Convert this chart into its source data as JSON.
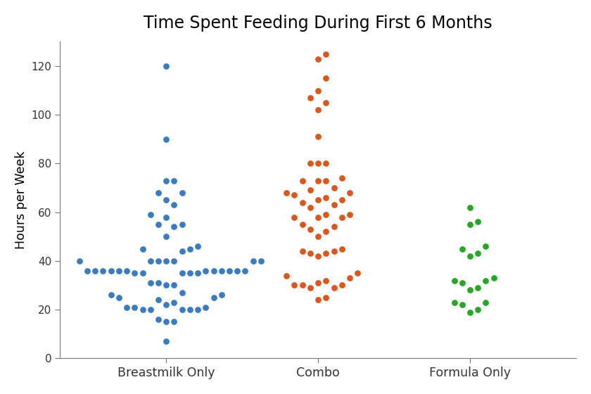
{
  "title": "Time Spent Feeding During First 6 Months",
  "ylabel": "Hours per Week",
  "categories": [
    "Breastmilk Only",
    "Combo",
    "Formula Only"
  ],
  "colors": [
    "#3a7cbf",
    "#d95820",
    "#27a627"
  ],
  "ylim": [
    0,
    130
  ],
  "yticks": [
    0,
    20,
    40,
    60,
    80,
    100,
    120
  ],
  "breastmilk": [
    120,
    90,
    73,
    73,
    68,
    68,
    65,
    63,
    59,
    58,
    55,
    55,
    54,
    50,
    46,
    45,
    45,
    44,
    40,
    40,
    40,
    40,
    40,
    40,
    40,
    36,
    36,
    36,
    36,
    36,
    36,
    36,
    36,
    36,
    36,
    36,
    36,
    35,
    35,
    35,
    35,
    35,
    31,
    31,
    30,
    30,
    27,
    26,
    26,
    25,
    25,
    24,
    23,
    22,
    21,
    21,
    21,
    20,
    20,
    20,
    20,
    20,
    16,
    15,
    15,
    7
  ],
  "combo": [
    125,
    123,
    115,
    110,
    107,
    105,
    102,
    91,
    80,
    80,
    80,
    74,
    73,
    73,
    73,
    70,
    69,
    68,
    68,
    67,
    66,
    65,
    65,
    64,
    63,
    62,
    59,
    59,
    58,
    58,
    58,
    55,
    54,
    53,
    52,
    50,
    45,
    44,
    44,
    43,
    43,
    42,
    35,
    34,
    33,
    32,
    31,
    30,
    30,
    30,
    29,
    29,
    25,
    24
  ],
  "formula": [
    62,
    56,
    55,
    46,
    45,
    43,
    42,
    33,
    32,
    32,
    31,
    29,
    28,
    23,
    23,
    22,
    20,
    19
  ]
}
